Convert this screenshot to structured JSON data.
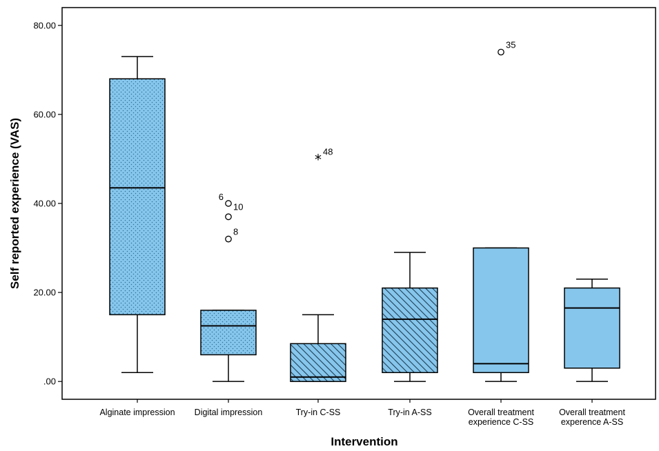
{
  "chart_data": {
    "type": "boxplot",
    "xlabel": "Intervention",
    "ylabel": "Self reported experience (VAS)",
    "ylim": [
      -4,
      84
    ],
    "yticks": [
      {
        "value": 0,
        "label": ".00"
      },
      {
        "value": 20,
        "label": "20.00"
      },
      {
        "value": 40,
        "label": "40.00"
      },
      {
        "value": 60,
        "label": "60.00"
      },
      {
        "value": 80,
        "label": "80.00"
      }
    ],
    "grid": false,
    "fill_color": "#87c6ec",
    "categories": [
      {
        "label": [
          "Alginate impression"
        ],
        "whisker_low": 2,
        "q1": 15,
        "median": 43.5,
        "q3": 68,
        "whisker_high": 73,
        "pattern": "dots",
        "outliers": []
      },
      {
        "label": [
          "Digital impression"
        ],
        "whisker_low": 0,
        "q1": 6,
        "median": 12.5,
        "q3": 16,
        "whisker_high": 16,
        "pattern": "dots",
        "outliers": [
          {
            "value": 40,
            "label": "6",
            "marker": "circle",
            "label_side": "left"
          },
          {
            "value": 37,
            "label": "10",
            "marker": "circle",
            "label_side": "right-up"
          },
          {
            "value": 32,
            "label": "8",
            "marker": "circle",
            "label_side": "right"
          }
        ]
      },
      {
        "label": [
          "Try-in C-SS"
        ],
        "whisker_low": 0,
        "q1": 0,
        "median": 1,
        "q3": 8.5,
        "whisker_high": 15,
        "pattern": "hatch",
        "outliers": [
          {
            "value": 50,
            "label": "48",
            "marker": "star",
            "label_side": "right"
          }
        ]
      },
      {
        "label": [
          "Try-in A-SS"
        ],
        "whisker_low": 0,
        "q1": 2,
        "median": 14,
        "q3": 21,
        "whisker_high": 29,
        "pattern": "hatch",
        "outliers": []
      },
      {
        "label": [
          "Overall treatment",
          "experience C-SS"
        ],
        "whisker_low": 0,
        "q1": 2,
        "median": 4,
        "q3": 30,
        "whisker_high": 30,
        "pattern": "plain",
        "outliers": [
          {
            "value": 74,
            "label": "35",
            "marker": "circle",
            "label_side": "right"
          }
        ]
      },
      {
        "label": [
          "Overall treatment",
          "experence A-SS"
        ],
        "whisker_low": 0,
        "q1": 3,
        "median": 16.5,
        "q3": 21,
        "whisker_high": 23,
        "pattern": "plain",
        "outliers": []
      }
    ]
  }
}
